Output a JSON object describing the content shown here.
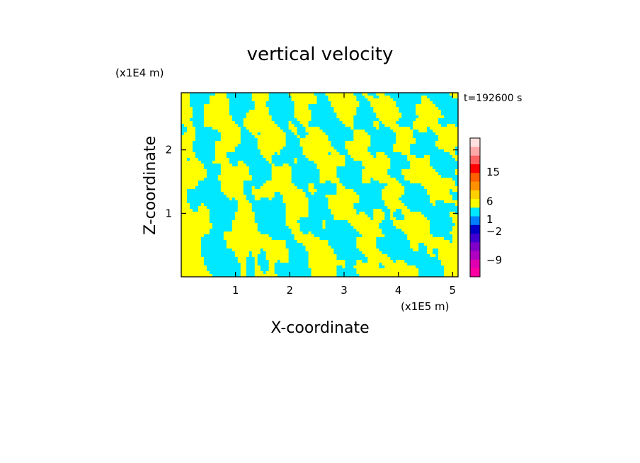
{
  "chart_data": {
    "type": "heatmap",
    "title": "vertical velocity",
    "time_label": "t=192600 s",
    "xlabel": "X-coordinate",
    "ylabel": "Z-coordinate",
    "x_unit": "(x1E5 m)",
    "y_unit": "(x1E4 m)",
    "xlim": [
      0,
      5.1
    ],
    "ylim": [
      0,
      2.9
    ],
    "x_ticks": [
      {
        "value": 1,
        "label": "1"
      },
      {
        "value": 2,
        "label": "2"
      },
      {
        "value": 3,
        "label": "3"
      },
      {
        "value": 4,
        "label": "4"
      },
      {
        "value": 5,
        "label": "5"
      }
    ],
    "y_ticks": [
      {
        "value": 1,
        "label": "1"
      },
      {
        "value": 2,
        "label": "2"
      }
    ],
    "field_colors": {
      "positive": "#ffff00",
      "negative": "#00e8ff"
    },
    "colorbar": {
      "levels": [
        {
          "color": "#ff00a0"
        },
        {
          "color": "#e000b0"
        },
        {
          "color": "#b000c0"
        },
        {
          "color": "#8000c8"
        },
        {
          "color": "#4000d0"
        },
        {
          "color": "#0000c8"
        },
        {
          "color": "#0080ff"
        },
        {
          "color": "#00e8ff"
        },
        {
          "color": "#ffff00"
        },
        {
          "color": "#ffd000"
        },
        {
          "color": "#ff9000"
        },
        {
          "color": "#ff6000"
        },
        {
          "color": "#ff0000"
        },
        {
          "color": "#ff6060"
        },
        {
          "color": "#ffa8a8"
        },
        {
          "color": "#ffe0e0"
        }
      ],
      "tick_labels": [
        {
          "value": -9,
          "label": "−9"
        },
        {
          "value": -2,
          "label": "−2"
        },
        {
          "value": 1,
          "label": "1"
        },
        {
          "value": 6,
          "label": "6"
        },
        {
          "value": 15,
          "label": "15"
        }
      ]
    }
  }
}
